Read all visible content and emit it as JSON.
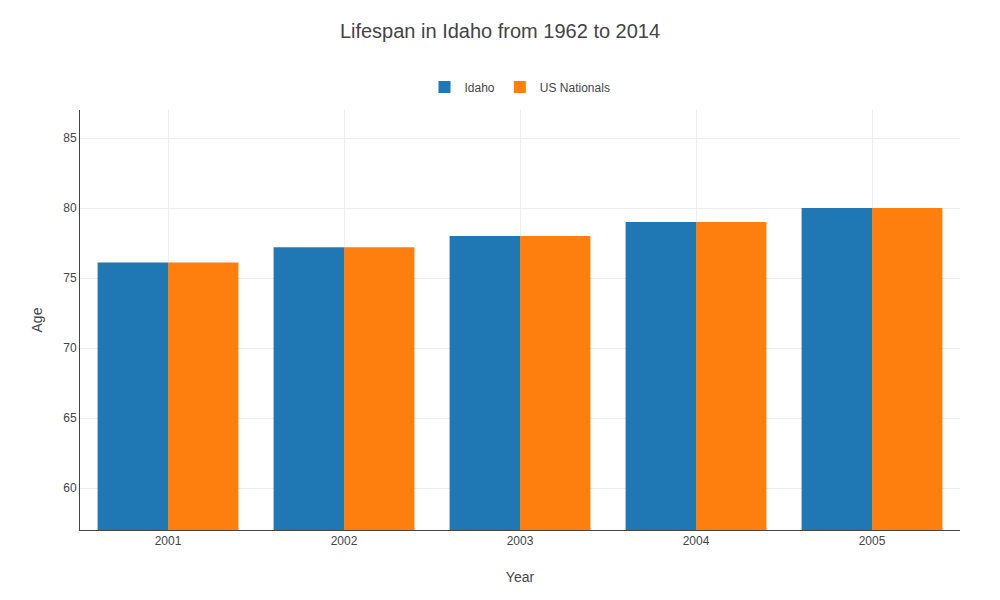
{
  "chart_data": {
    "type": "bar",
    "title": "Lifespan in Idaho from 1962 to 2014",
    "xlabel": "Year",
    "ylabel": "Age",
    "categories": [
      "2001",
      "2002",
      "2003",
      "2004",
      "2005"
    ],
    "series": [
      {
        "name": "Idaho",
        "values": [
          76.1,
          77.2,
          78.0,
          79.0,
          80.0
        ]
      },
      {
        "name": "US Nationals",
        "values": [
          76.1,
          77.2,
          78.0,
          79.0,
          80.0
        ]
      }
    ],
    "ylim": [
      57,
      87
    ],
    "yticks": [
      60,
      65,
      70,
      75,
      80,
      85
    ],
    "grid": true,
    "legend": "upper center"
  }
}
